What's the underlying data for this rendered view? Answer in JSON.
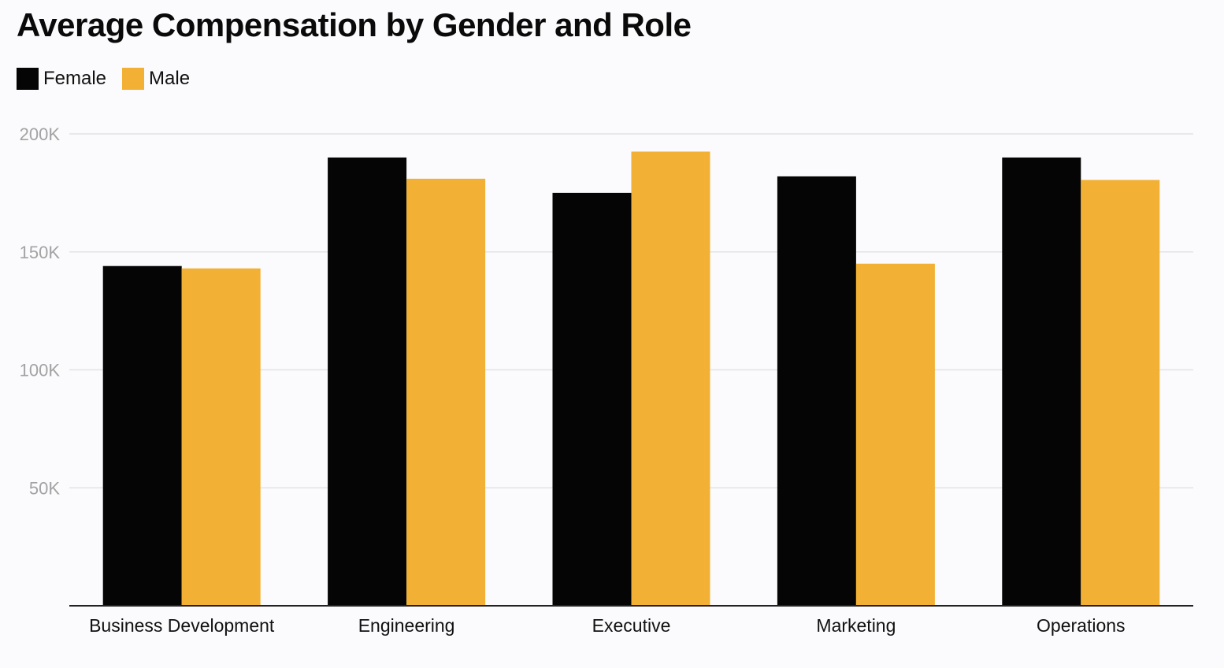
{
  "chart_data": {
    "type": "bar",
    "title": "Average Compensation by Gender and Role",
    "xlabel": "",
    "ylabel": "",
    "categories": [
      "Business Development",
      "Engineering",
      "Executive",
      "Marketing",
      "Operations"
    ],
    "series": [
      {
        "name": "Female",
        "color": "#050505",
        "values": [
          144000,
          190000,
          175000,
          182000,
          190000
        ]
      },
      {
        "name": "Male",
        "color": "#f2b134",
        "values": [
          143000,
          181000,
          192500,
          145000,
          180500
        ]
      }
    ],
    "ylim": [
      0,
      200000
    ],
    "yticks": [
      {
        "value": 50000,
        "label": "50K"
      },
      {
        "value": 100000,
        "label": "100K"
      },
      {
        "value": 150000,
        "label": "150K"
      },
      {
        "value": 200000,
        "label": "200K"
      }
    ],
    "grid": true,
    "legend_position": "top-left"
  }
}
